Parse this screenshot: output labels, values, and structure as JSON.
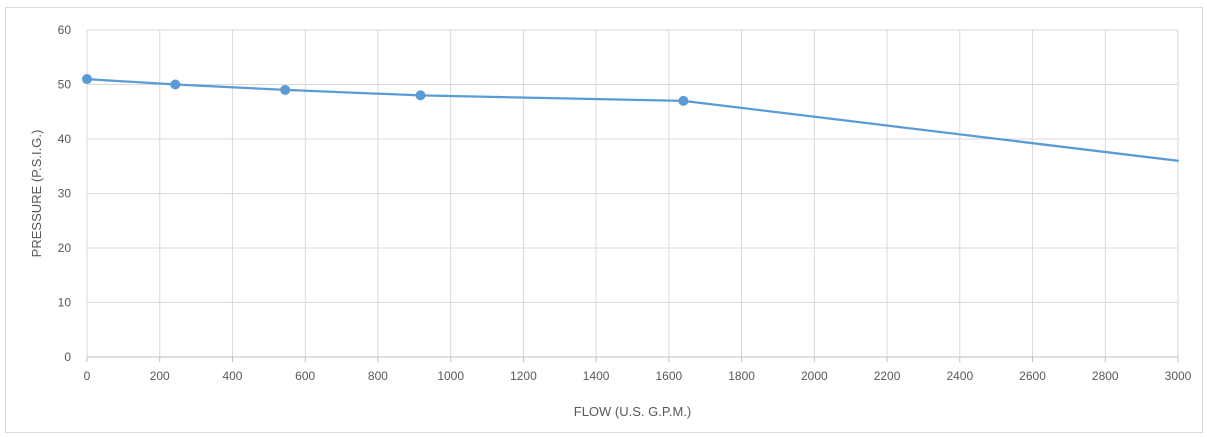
{
  "chart_data": {
    "type": "line",
    "title": "",
    "xlabel": "FLOW (U.S. G.P.M.)",
    "ylabel": "PRESSURE (P.S.I.G.)",
    "xlim": [
      0,
      3000
    ],
    "ylim": [
      0,
      60
    ],
    "x_ticks": [
      "0",
      "200",
      "400",
      "600",
      "800",
      "1000",
      "1200",
      "1400",
      "1600",
      "1800",
      "2000",
      "2200",
      "2400",
      "2600",
      "2800",
      "3000"
    ],
    "y_ticks": [
      "0",
      "10",
      "20",
      "30",
      "40",
      "50",
      "60"
    ],
    "grid": true,
    "legend": "none",
    "series": [
      {
        "color": "#5b9bd5",
        "points": [
          {
            "x": 0,
            "y": 51
          },
          {
            "x": 243,
            "y": 50
          },
          {
            "x": 545,
            "y": 49
          },
          {
            "x": 917,
            "y": 48
          },
          {
            "x": 1640,
            "y": 47
          },
          {
            "x": 3000,
            "y": 36
          }
        ],
        "markers": [
          true,
          true,
          true,
          true,
          true,
          false
        ]
      }
    ]
  }
}
